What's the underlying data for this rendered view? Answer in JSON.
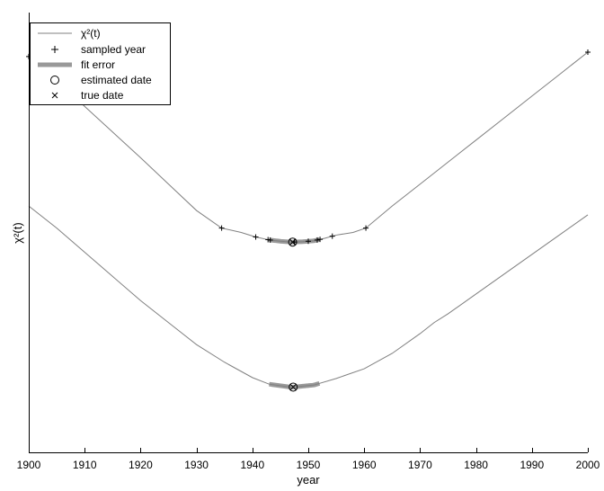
{
  "chart_data": {
    "type": "line",
    "xlabel": "year",
    "ylabel": "χ²(t)",
    "xlim": [
      1900,
      2000
    ],
    "x_ticks": [
      1900,
      1910,
      1920,
      1930,
      1940,
      1950,
      1960,
      1970,
      1980,
      1990,
      2000
    ],
    "grid": false,
    "legend": {
      "placement": "top-left",
      "entries": [
        {
          "label": "χ²(t)",
          "style": "thin-line"
        },
        {
          "label": "sampled year",
          "style": "plus-marker"
        },
        {
          "label": "fit error",
          "style": "thick-line"
        },
        {
          "label": "estimated date",
          "style": "circle-marker"
        },
        {
          "label": "true date",
          "style": "x-marker"
        }
      ]
    },
    "colors": {
      "curve": "#808080",
      "fit_error": "#999999",
      "marker": "#000000"
    },
    "ylim": [
      0,
      1
    ],
    "upper_curve": {
      "points": [
        [
          1900,
          0.9
        ],
        [
          1903,
          0.87
        ],
        [
          1908,
          0.81
        ],
        [
          1914,
          0.74
        ],
        [
          1920,
          0.67
        ],
        [
          1925,
          0.61
        ],
        [
          1930,
          0.55
        ],
        [
          1934.5,
          0.51
        ],
        [
          1938,
          0.5
        ],
        [
          1940.5,
          0.49
        ],
        [
          1943,
          0.483
        ],
        [
          1945,
          0.48
        ],
        [
          1947,
          0.478
        ],
        [
          1949,
          0.479
        ],
        [
          1951,
          0.481
        ],
        [
          1953,
          0.487
        ],
        [
          1955,
          0.494
        ],
        [
          1958,
          0.5
        ],
        [
          1960.3,
          0.51
        ],
        [
          1965,
          0.56
        ],
        [
          1970,
          0.61
        ],
        [
          1975,
          0.66
        ],
        [
          1980,
          0.71
        ],
        [
          1985,
          0.76
        ],
        [
          1990,
          0.81
        ],
        [
          1995,
          0.86
        ],
        [
          2000,
          0.91
        ]
      ],
      "sampled_years": [
        1900,
        1934.5,
        1940.6,
        1942.8,
        1943.2,
        1947.5,
        1950,
        1951.6,
        1952.1,
        1954.3,
        1960.3,
        2000
      ],
      "fit_error_range": [
        1943,
        1952
      ],
      "estimated_date": 1947.2,
      "true_date": 1947.2
    },
    "lower_curve": {
      "points": [
        [
          1900,
          0.56
        ],
        [
          1905,
          0.51
        ],
        [
          1910,
          0.455
        ],
        [
          1915,
          0.4
        ],
        [
          1920,
          0.345
        ],
        [
          1925,
          0.295
        ],
        [
          1930,
          0.245
        ],
        [
          1935,
          0.205
        ],
        [
          1940,
          0.17
        ],
        [
          1943,
          0.155
        ],
        [
          1947,
          0.148
        ],
        [
          1951,
          0.153
        ],
        [
          1955,
          0.168
        ],
        [
          1960,
          0.19
        ],
        [
          1965,
          0.225
        ],
        [
          1970,
          0.27
        ],
        [
          1972.5,
          0.295
        ],
        [
          1975,
          0.315
        ],
        [
          1980,
          0.36
        ],
        [
          1985,
          0.405
        ],
        [
          1990,
          0.45
        ],
        [
          1995,
          0.495
        ],
        [
          2000,
          0.54
        ]
      ],
      "fit_error_range": [
        1943,
        1952
      ],
      "estimated_date": 1947.3,
      "true_date": 1947.3
    }
  }
}
